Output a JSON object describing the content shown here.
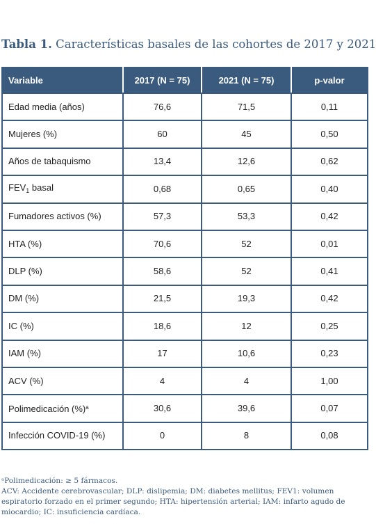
{
  "title": {
    "label": "Tabla 1.",
    "text": "Características basales de las cohortes de 2017 y 2021"
  },
  "table": {
    "headers": [
      "Variable",
      "2017 (N = 75)",
      "2021 (N = 75)",
      "p-valor"
    ],
    "rows": [
      {
        "variable": "Edad media (años)",
        "v2017": "76,6",
        "v2021": "71,5",
        "p": "0,11"
      },
      {
        "variable": "Mujeres (%)",
        "v2017": "60",
        "v2021": "45",
        "p": "0,50"
      },
      {
        "variable": "Años de tabaquismo",
        "v2017": "13,4",
        "v2021": "12,6",
        "p": "0,62"
      },
      {
        "variable": "FEV",
        "variable_sub": "1",
        "variable_suffix": " basal",
        "v2017": "0,68",
        "v2021": "0,65",
        "p": "0,40"
      },
      {
        "variable": "Fumadores activos (%)",
        "v2017": "57,3",
        "v2021": "53,3",
        "p": "0,42"
      },
      {
        "variable": "HTA (%)",
        "v2017": "70,6",
        "v2021": "52",
        "p": "0,01"
      },
      {
        "variable": "DLP (%)",
        "v2017": "58,6",
        "v2021": "52",
        "p": "0,41"
      },
      {
        "variable": "DM (%)",
        "v2017": "21,5",
        "v2021": "19,3",
        "p": "0,42"
      },
      {
        "variable": "IC (%)",
        "v2017": "18,6",
        "v2021": "12",
        "p": "0,25"
      },
      {
        "variable": "IAM (%)",
        "v2017": "17",
        "v2021": "10,6",
        "p": "0,23"
      },
      {
        "variable": "ACV (%)",
        "v2017": "4",
        "v2021": "4",
        "p": "1,00"
      },
      {
        "variable": "Polimedicación (%)",
        "variable_sup": "a",
        "v2017": "30,6",
        "v2021": "39,6",
        "p": "0,07"
      },
      {
        "variable": "Infección COVID-19 (%)",
        "v2017": "0",
        "v2021": "8",
        "p": "0,08"
      }
    ]
  },
  "footnotes": {
    "note_a": "ᵃPolimedicación: ≥ 5 fármacos.",
    "abbreviations": "ACV: Accidente cerebrovascular; DLP: dislipemia; DM: diabetes mellitus; FEV1: volumen espiratorio forzado en el primer segundo; HTA: hipertensión arterial; IAM: infarto agudo de miocardio; IC: insuficiencia cardíaca."
  }
}
